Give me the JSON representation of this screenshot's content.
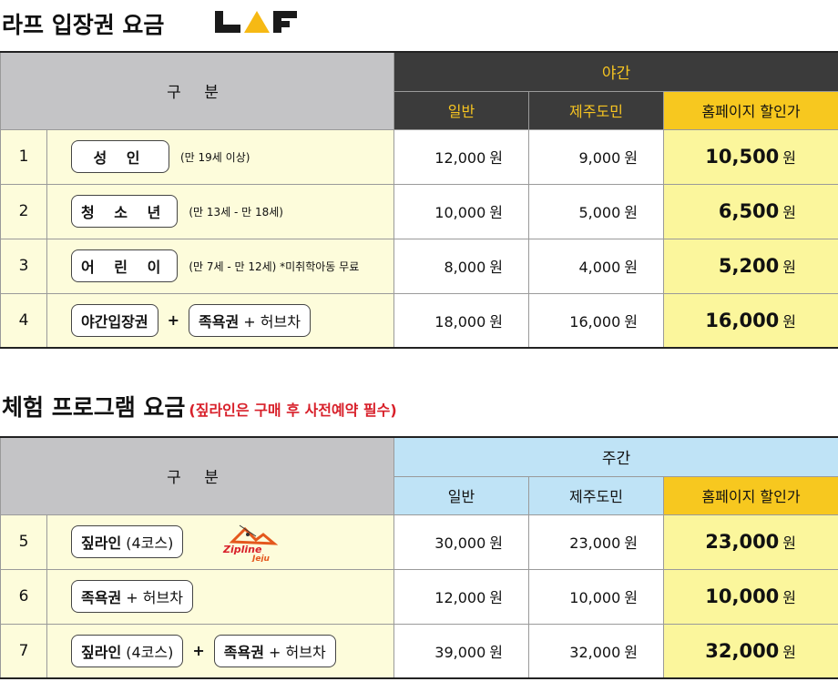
{
  "title1": "라프 입장권 요금",
  "logo_text": "LAF",
  "table1": {
    "group_label": "구 분",
    "period": "야간",
    "cols": [
      "일반",
      "제주도민",
      "홈페이지 할인가"
    ],
    "rows": [
      {
        "num": "1",
        "label": "성 인",
        "note": "(만 19세 이상)",
        "gen": "12,000",
        "jeju": "9,000",
        "home": "10,500"
      },
      {
        "num": "2",
        "label": "청 소 년",
        "note": "(만 13세 - 만 18세)",
        "gen": "10,000",
        "jeju": "5,000",
        "home": "6,500"
      },
      {
        "num": "3",
        "label": "어 린 이",
        "note": "(만 7세 - 만 12세)  *미취학아동 무료",
        "gen": "8,000",
        "jeju": "4,000",
        "home": "5,200"
      },
      {
        "num": "4",
        "label": "야간입장권",
        "plus": "+",
        "label2a": "족욕권",
        "label2b": " + 허브차",
        "gen": "18,000",
        "jeju": "16,000",
        "home": "16,000"
      }
    ]
  },
  "title2": "체험 프로그램 요금",
  "title2_note": "(짚라인은 구매 후 사전예약 필수)",
  "table2": {
    "group_label": "구 분",
    "period": "주간",
    "cols": [
      "일반",
      "제주도민",
      "홈페이지 할인가"
    ],
    "rows": [
      {
        "num": "5",
        "labela": "짚라인",
        "labelb": " (4코스)",
        "logo": "Zipline Jeju",
        "gen": "30,000",
        "jeju": "23,000",
        "home": "23,000"
      },
      {
        "num": "6",
        "labela": "족욕권",
        "labelb": " + 허브차",
        "gen": "12,000",
        "jeju": "10,000",
        "home": "10,000"
      },
      {
        "num": "7",
        "labela": "짚라인",
        "labelb": " (4코스)",
        "plus": "+",
        "label2a": "족욕권",
        "label2b": " + 허브차",
        "gen": "39,000",
        "jeju": "32,000",
        "home": "32,000"
      }
    ]
  },
  "unit": "원",
  "colors": {
    "night_header": "#3b3b3b",
    "night_text": "#f6c421",
    "day_header": "#bfe3f6",
    "discount": "#f7c81f",
    "note_red": "#d8202a"
  }
}
